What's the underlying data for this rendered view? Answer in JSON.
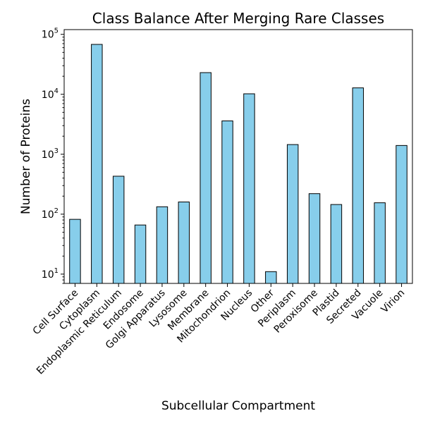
{
  "chart_data": {
    "type": "bar",
    "title": "Class Balance After Merging Rare Classes",
    "xlabel": "Subcellular Compartment",
    "ylabel": "Number of Proteins",
    "yscale": "log",
    "ylim": [
      7,
      120000
    ],
    "y_ticks": [
      {
        "value": 10,
        "base": "10",
        "exp": "1"
      },
      {
        "value": 100,
        "base": "10",
        "exp": "2"
      },
      {
        "value": 1000,
        "base": "10",
        "exp": "3"
      },
      {
        "value": 10000,
        "base": "10",
        "exp": "4"
      },
      {
        "value": 100000,
        "base": "10",
        "exp": "5"
      }
    ],
    "grid": false,
    "legend": "none",
    "bar_color": "#87ceeb",
    "edge_color": "#000000",
    "categories": [
      "Cell Surface",
      "Cytoplasm",
      "Endoplasmic Reticulum",
      "Endosome",
      "Golgi Apparatus",
      "Lysosome",
      "Membrane",
      "Mitochondrion",
      "Nucleus",
      "Other",
      "Periplasm",
      "Peroxisome",
      "Plastid",
      "Secreted",
      "Vacuole",
      "Virion"
    ],
    "values": [
      82,
      68000,
      430,
      66,
      133,
      160,
      23000,
      3600,
      10200,
      11,
      1450,
      220,
      145,
      12800,
      155,
      1400
    ]
  }
}
